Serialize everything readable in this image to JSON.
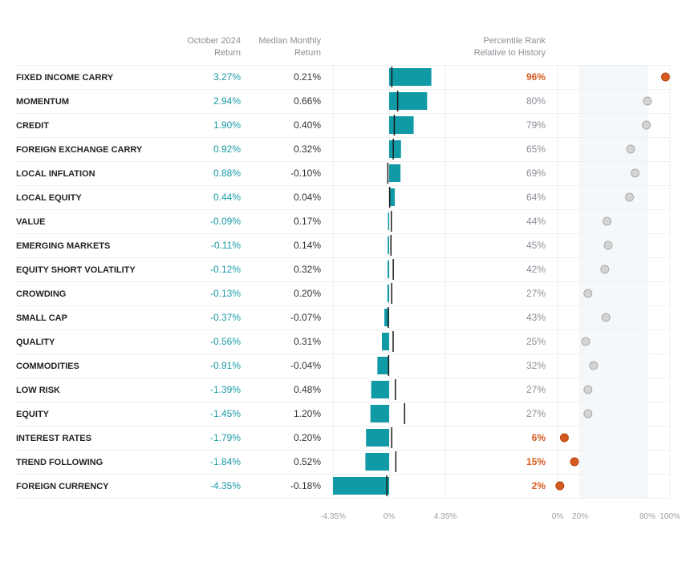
{
  "headers": {
    "oct_return": [
      "October 2024",
      "Return"
    ],
    "median_return": [
      "Median Monthly",
      "Return"
    ],
    "percentile": [
      "Percentile Rank",
      "Relative to History"
    ]
  },
  "colors": {
    "bar": "#0f9aa5",
    "median_tick": "#1a1a1a",
    "oct_text": "#1a9aa5",
    "highlight": "#d65a1f",
    "dot_normal": "#d4d4d4",
    "dot_normal_stroke": "#aaaaaa",
    "band": "#f5f8fa"
  },
  "chart_data": {
    "type": "bar",
    "title": "",
    "xlabel": "",
    "bar_axis": {
      "range": [
        -4.35,
        4.35
      ],
      "tick_labels": [
        "-4.35%",
        "0%",
        "4.35%"
      ]
    },
    "percentile_axis": {
      "range": [
        0,
        100
      ],
      "ticks": [
        0,
        20,
        80,
        100
      ],
      "tick_labels": [
        "0%",
        "20%",
        "80%",
        "100%"
      ],
      "shaded_band": [
        20,
        80
      ]
    },
    "rows": [
      {
        "factor": "FIXED INCOME CARRY",
        "oct_return": 3.27,
        "oct_label": "3.27%",
        "median": 0.21,
        "median_label": "0.21%",
        "percentile": 96,
        "pct_label": "96%",
        "highlight": true
      },
      {
        "factor": "MOMENTUM",
        "oct_return": 2.94,
        "oct_label": "2.94%",
        "median": 0.66,
        "median_label": "0.66%",
        "percentile": 80,
        "pct_label": "80%",
        "highlight": false
      },
      {
        "factor": "CREDIT",
        "oct_return": 1.9,
        "oct_label": "1.90%",
        "median": 0.4,
        "median_label": "0.40%",
        "percentile": 79,
        "pct_label": "79%",
        "highlight": false
      },
      {
        "factor": "FOREIGN EXCHANGE CARRY",
        "oct_return": 0.92,
        "oct_label": "0.92%",
        "median": 0.32,
        "median_label": "0.32%",
        "percentile": 65,
        "pct_label": "65%",
        "highlight": false
      },
      {
        "factor": "LOCAL INFLATION",
        "oct_return": 0.88,
        "oct_label": "0.88%",
        "median": -0.1,
        "median_label": "-0.10%",
        "percentile": 69,
        "pct_label": "69%",
        "highlight": false
      },
      {
        "factor": "LOCAL EQUITY",
        "oct_return": 0.44,
        "oct_label": "0.44%",
        "median": 0.04,
        "median_label": "0.04%",
        "percentile": 64,
        "pct_label": "64%",
        "highlight": false
      },
      {
        "factor": "VALUE",
        "oct_return": -0.09,
        "oct_label": "-0.09%",
        "median": 0.17,
        "median_label": "0.17%",
        "percentile": 44,
        "pct_label": "44%",
        "highlight": false
      },
      {
        "factor": "EMERGING MARKETS",
        "oct_return": -0.11,
        "oct_label": "-0.11%",
        "median": 0.14,
        "median_label": "0.14%",
        "percentile": 45,
        "pct_label": "45%",
        "highlight": false
      },
      {
        "factor": "EQUITY SHORT VOLATILITY",
        "oct_return": -0.12,
        "oct_label": "-0.12%",
        "median": 0.32,
        "median_label": "0.32%",
        "percentile": 42,
        "pct_label": "42%",
        "highlight": false
      },
      {
        "factor": "CROWDING",
        "oct_return": -0.13,
        "oct_label": "-0.13%",
        "median": 0.2,
        "median_label": "0.20%",
        "percentile": 27,
        "pct_label": "27%",
        "highlight": false
      },
      {
        "factor": "SMALL CAP",
        "oct_return": -0.37,
        "oct_label": "-0.37%",
        "median": -0.07,
        "median_label": "-0.07%",
        "percentile": 43,
        "pct_label": "43%",
        "highlight": false
      },
      {
        "factor": "QUALITY",
        "oct_return": -0.56,
        "oct_label": "-0.56%",
        "median": 0.31,
        "median_label": "0.31%",
        "percentile": 25,
        "pct_label": "25%",
        "highlight": false
      },
      {
        "factor": "COMMODITIES",
        "oct_return": -0.91,
        "oct_label": "-0.91%",
        "median": -0.04,
        "median_label": "-0.04%",
        "percentile": 32,
        "pct_label": "32%",
        "highlight": false
      },
      {
        "factor": "LOW RISK",
        "oct_return": -1.39,
        "oct_label": "-1.39%",
        "median": 0.48,
        "median_label": "0.48%",
        "percentile": 27,
        "pct_label": "27%",
        "highlight": false
      },
      {
        "factor": "EQUITY",
        "oct_return": -1.45,
        "oct_label": "-1.45%",
        "median": 1.2,
        "median_label": "1.20%",
        "percentile": 27,
        "pct_label": "27%",
        "highlight": false
      },
      {
        "factor": "INTEREST RATES",
        "oct_return": -1.79,
        "oct_label": "-1.79%",
        "median": 0.2,
        "median_label": "0.20%",
        "percentile": 6,
        "pct_label": "6%",
        "highlight": true
      },
      {
        "factor": "TREND FOLLOWING",
        "oct_return": -1.84,
        "oct_label": "-1.84%",
        "median": 0.52,
        "median_label": "0.52%",
        "percentile": 15,
        "pct_label": "15%",
        "highlight": true
      },
      {
        "factor": "FOREIGN CURRENCY",
        "oct_return": -4.35,
        "oct_label": "-4.35%",
        "median": -0.18,
        "median_label": "-0.18%",
        "percentile": 2,
        "pct_label": "2%",
        "highlight": true
      }
    ]
  }
}
